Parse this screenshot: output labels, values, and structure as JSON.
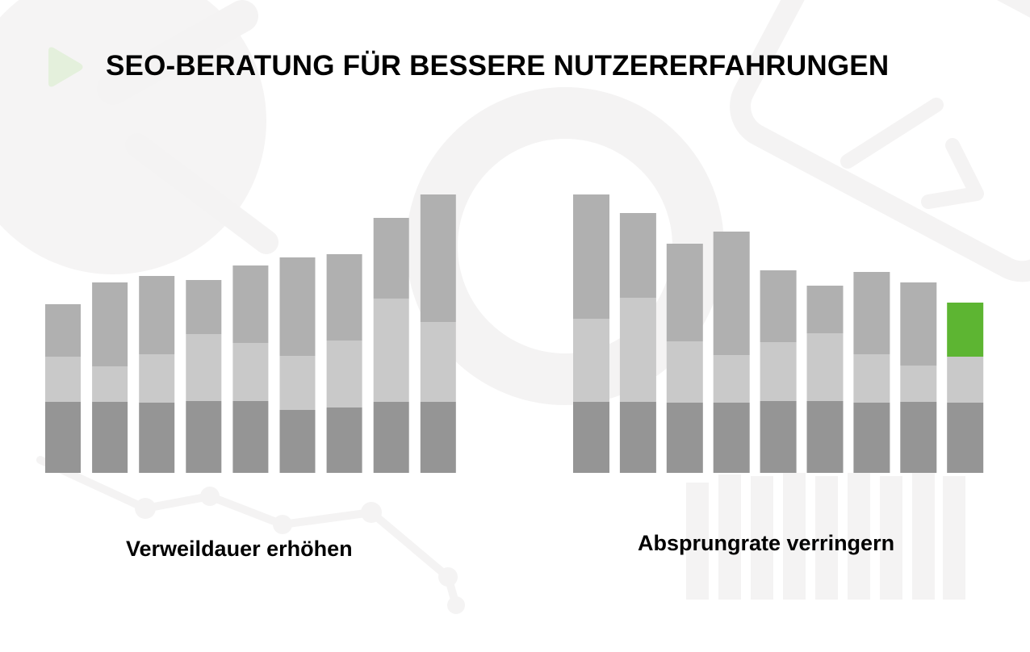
{
  "header": {
    "title": "SEO-BERATUNG FÜR BESSERE NUTZERERFAHRUNGEN"
  },
  "colors": {
    "background": "#ffffff",
    "decor": "#f4f3f3",
    "play_icon": "#e4f0dc",
    "segment_bottom": "#959595",
    "segment_middle": "#c9c9c9",
    "segment_top": "#b0b0b0",
    "highlight": "#5db532"
  },
  "chart_data": [
    {
      "type": "bar",
      "stacked": true,
      "caption": "Verweildauer erhöhen",
      "categories": [
        "",
        "",
        "",
        "",
        "",
        "",
        "",
        "",
        ""
      ],
      "series": [
        {
          "values": [
            88,
            88,
            87,
            89,
            89,
            78,
            81,
            88,
            88
          ]
        },
        {
          "values": [
            56,
            44,
            60,
            83,
            72,
            67,
            83,
            128,
            99
          ]
        },
        {
          "values": [
            65,
            104,
            97,
            67,
            96,
            122,
            107,
            100,
            158
          ]
        }
      ],
      "ylim": [
        0,
        345
      ]
    },
    {
      "type": "bar",
      "stacked": true,
      "caption": "Absprungrate verringern",
      "categories": [
        "",
        "",
        "",
        "",
        "",
        "",
        "",
        "",
        ""
      ],
      "series": [
        {
          "values": [
            88,
            88,
            87,
            87,
            89,
            89,
            87,
            88,
            87
          ]
        },
        {
          "values": [
            103,
            129,
            76,
            59,
            73,
            84,
            60,
            45,
            57
          ]
        },
        {
          "values": [
            154,
            105,
            121,
            153,
            89,
            59,
            102,
            103,
            67
          ]
        }
      ],
      "highlight": {
        "bar": 8,
        "segment": 2
      },
      "ylim": [
        0,
        345
      ]
    }
  ]
}
